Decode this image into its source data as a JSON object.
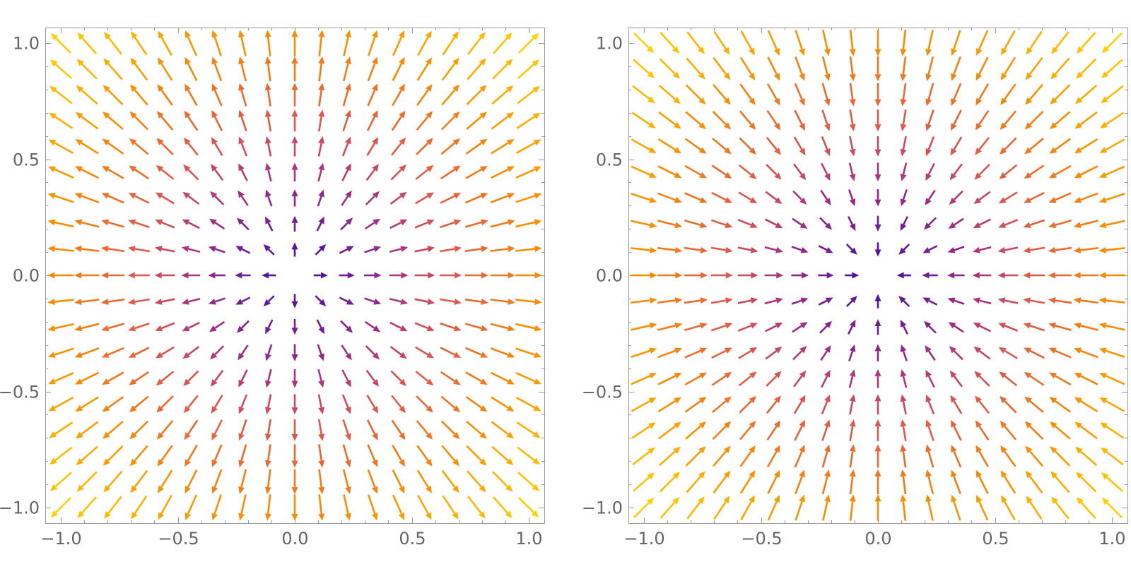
{
  "chart_data": [
    {
      "type": "vector_field",
      "field": "radial-outward",
      "direction": "outward",
      "x_range": [
        -1,
        1
      ],
      "y_range": [
        -1,
        1
      ],
      "xticks": [
        {
          "value": -1.0,
          "label": "−1.0"
        },
        {
          "value": -0.5,
          "label": "−0.5"
        },
        {
          "value": 0.0,
          "label": "0.0"
        },
        {
          "value": 0.5,
          "label": "0.5"
        },
        {
          "value": 1.0,
          "label": "1.0"
        }
      ],
      "yticks": [
        {
          "value": -1.0,
          "label": "−1.0"
        },
        {
          "value": -0.5,
          "label": "−0.5"
        },
        {
          "value": 0.0,
          "label": "0.0"
        },
        {
          "value": 0.5,
          "label": "0.5"
        },
        {
          "value": 1.0,
          "label": "1.0"
        }
      ],
      "grid": false,
      "title": "",
      "xlabel": "",
      "ylabel": "",
      "colormap": [
        "#3a0ca3",
        "#6a1b9a",
        "#a02d84",
        "#d84f5a",
        "#f06b2b",
        "#fb8c00",
        "#ffb300",
        "#ffd200"
      ],
      "color_by": "magnitude"
    },
    {
      "type": "vector_field",
      "field": "radial-inward",
      "direction": "inward",
      "x_range": [
        -1,
        1
      ],
      "y_range": [
        -1,
        1
      ],
      "xticks": [
        {
          "value": -1.0,
          "label": "−1.0"
        },
        {
          "value": -0.5,
          "label": "−0.5"
        },
        {
          "value": 0.0,
          "label": "0.0"
        },
        {
          "value": 0.5,
          "label": "0.5"
        },
        {
          "value": 1.0,
          "label": "1.0"
        }
      ],
      "yticks": [
        {
          "value": -1.0,
          "label": "−1.0"
        },
        {
          "value": -0.5,
          "label": "−0.5"
        },
        {
          "value": 0.0,
          "label": "0.0"
        },
        {
          "value": 0.5,
          "label": "0.5"
        },
        {
          "value": 1.0,
          "label": "1.0"
        }
      ],
      "grid": false,
      "title": "",
      "xlabel": "",
      "ylabel": "",
      "colormap": [
        "#3a0ca3",
        "#6a1b9a",
        "#a02d84",
        "#d84f5a",
        "#f06b2b",
        "#fb8c00",
        "#ffb300",
        "#ffd200"
      ],
      "color_by": "magnitude"
    }
  ]
}
